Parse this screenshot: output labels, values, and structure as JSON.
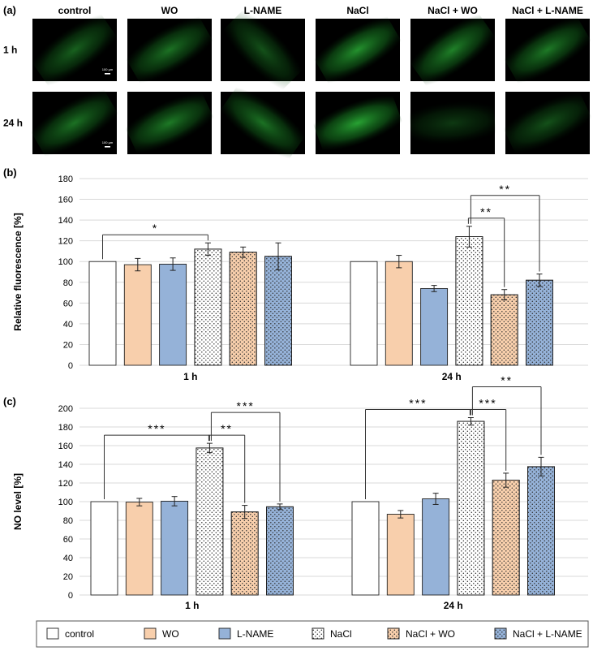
{
  "panel_labels": {
    "a": "(a)",
    "b": "(b)",
    "c": "(c)"
  },
  "groups": [
    "control",
    "WO",
    "L-NAME",
    "NaCl",
    "NaCl + WO",
    "NaCl + L-NAME"
  ],
  "timepoints": [
    "1 h",
    "24 h"
  ],
  "scale_bar_text": "100 µm",
  "legend": {
    "items": [
      {
        "label": "control",
        "pattern": "plain-white"
      },
      {
        "label": "WO",
        "pattern": "plain-peach"
      },
      {
        "label": "L-NAME",
        "pattern": "plain-blue"
      },
      {
        "label": "NaCl",
        "pattern": "dots-white"
      },
      {
        "label": "NaCl + WO",
        "pattern": "dots-peach"
      },
      {
        "label": "NaCl + L-NAME",
        "pattern": "dots-blue"
      }
    ]
  },
  "colors": {
    "control": "#ffffff",
    "WO": "#f8cfac",
    "L-NAME": "#95b2d8",
    "NaCl": "#ffffff",
    "NaCl + WO": "#f8cfac",
    "NaCl + L-NAME": "#95b2d8",
    "grid": "#d9d9d9",
    "micrograph_background": "#000000",
    "micrograph_green": "#1fa12f"
  },
  "chart_data": [
    {
      "panel": "(b)",
      "type": "bar",
      "ylabel": "Relative fluorescence [%]",
      "xlabel": "",
      "ylim": [
        0,
        180
      ],
      "yticks": [
        0,
        20,
        40,
        60,
        80,
        100,
        120,
        140,
        160,
        180
      ],
      "grid": true,
      "categories": [
        "1 h",
        "24 h"
      ],
      "series": [
        {
          "name": "control",
          "values": [
            100,
            100
          ],
          "errors": [
            0,
            0
          ]
        },
        {
          "name": "WO",
          "values": [
            97,
            100
          ],
          "errors": [
            6,
            6
          ]
        },
        {
          "name": "L-NAME",
          "values": [
            97.5,
            74
          ],
          "errors": [
            6,
            3
          ]
        },
        {
          "name": "NaCl",
          "values": [
            112,
            124
          ],
          "errors": [
            6,
            10
          ]
        },
        {
          "name": "NaCl + WO",
          "values": [
            109,
            68
          ],
          "errors": [
            5,
            5
          ]
        },
        {
          "name": "NaCl + L-NAME",
          "values": [
            105,
            82
          ],
          "errors": [
            13,
            6
          ]
        }
      ],
      "significance": [
        {
          "timepoint": "1 h",
          "from": "control",
          "to": "NaCl",
          "label": "*"
        },
        {
          "timepoint": "24 h",
          "from": "NaCl",
          "to": "NaCl + WO",
          "label": "**"
        },
        {
          "timepoint": "24 h",
          "from": "NaCl",
          "to": "NaCl + L-NAME",
          "label": "**"
        }
      ]
    },
    {
      "panel": "(c)",
      "type": "bar",
      "ylabel": "NO level [%]",
      "xlabel": "",
      "ylim": [
        0,
        200
      ],
      "yticks": [
        0,
        20,
        40,
        60,
        80,
        100,
        120,
        140,
        160,
        180,
        200
      ],
      "grid": true,
      "categories": [
        "1 h",
        "24 h"
      ],
      "series": [
        {
          "name": "control",
          "values": [
            100,
            100
          ],
          "errors": [
            0,
            0
          ]
        },
        {
          "name": "WO",
          "values": [
            99.5,
            86.5
          ],
          "errors": [
            4,
            4
          ]
        },
        {
          "name": "L-NAME",
          "values": [
            100.5,
            103
          ],
          "errors": [
            5,
            6
          ]
        },
        {
          "name": "NaCl",
          "values": [
            157.5,
            186
          ],
          "errors": [
            5,
            4
          ]
        },
        {
          "name": "NaCl + WO",
          "values": [
            89,
            123
          ],
          "errors": [
            7,
            7.5
          ]
        },
        {
          "name": "NaCl + L-NAME",
          "values": [
            94.5,
            137.5
          ],
          "errors": [
            3,
            10
          ]
        }
      ],
      "significance": [
        {
          "timepoint": "1 h",
          "from": "control",
          "to": "NaCl",
          "label": "***"
        },
        {
          "timepoint": "1 h",
          "from": "NaCl",
          "to": "NaCl + WO",
          "label": "**"
        },
        {
          "timepoint": "1 h",
          "from": "NaCl",
          "to": "NaCl + L-NAME",
          "label": "***"
        },
        {
          "timepoint": "24 h",
          "from": "control",
          "to": "NaCl",
          "label": "***"
        },
        {
          "timepoint": "24 h",
          "from": "NaCl",
          "to": "NaCl + WO",
          "label": "***"
        },
        {
          "timepoint": "24 h",
          "from": "NaCl",
          "to": "NaCl + L-NAME",
          "label": "**"
        }
      ]
    }
  ]
}
